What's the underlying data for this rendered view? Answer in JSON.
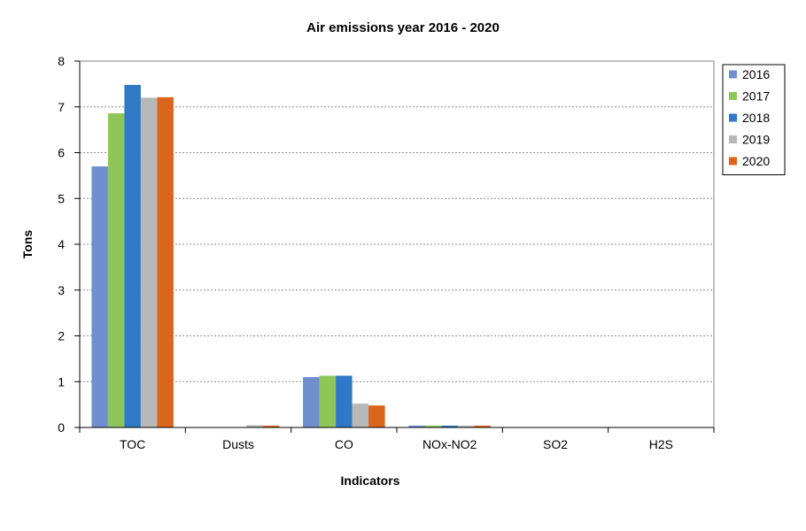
{
  "chart_data": {
    "type": "bar",
    "title": "Air emissions year 2016 - 2020",
    "xlabel": "Indicators",
    "ylabel": "Tons",
    "ylim": [
      0,
      8
    ],
    "yticks": [
      "0",
      "1",
      "2",
      "3",
      "4",
      "5",
      "6",
      "7",
      "8"
    ],
    "grid": true,
    "legend_position": "top-right",
    "categories": [
      "TOC",
      "Dusts",
      "CO",
      "NOx-NO2",
      "SO2",
      "H2S"
    ],
    "series": [
      {
        "name": "2016",
        "color": "#6f8fcf",
        "values": [
          5.7,
          0.0,
          1.1,
          0.04,
          0.0,
          0.0
        ]
      },
      {
        "name": "2017",
        "color": "#8fc65a",
        "values": [
          6.86,
          0.0,
          1.13,
          0.04,
          0.0,
          0.0
        ]
      },
      {
        "name": "2018",
        "color": "#2f79c6",
        "values": [
          7.48,
          0.0,
          1.13,
          0.04,
          0.0,
          0.0
        ]
      },
      {
        "name": "2019",
        "color": "#b8b8b8",
        "values": [
          7.2,
          0.05,
          0.52,
          0.04,
          0.0,
          0.0
        ]
      },
      {
        "name": "2020",
        "color": "#d9661c",
        "values": [
          7.21,
          0.04,
          0.48,
          0.04,
          0.0,
          0.0
        ]
      }
    ]
  }
}
